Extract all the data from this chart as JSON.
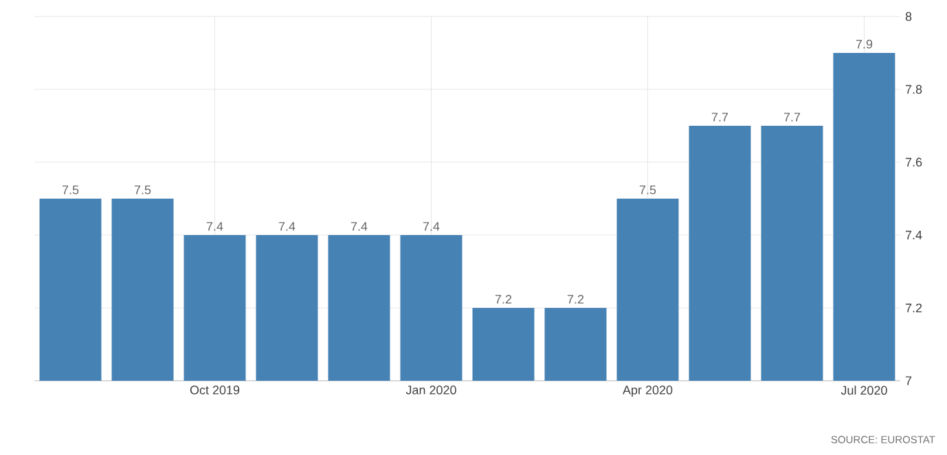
{
  "chart_data": {
    "type": "bar",
    "categories": [
      null,
      null,
      "Oct 2019",
      null,
      null,
      "Jan 2020",
      null,
      null,
      "Apr 2020",
      null,
      null,
      "Jul 2020"
    ],
    "values": [
      7.5,
      7.5,
      7.4,
      7.4,
      7.4,
      7.4,
      7.2,
      7.2,
      7.5,
      7.7,
      7.7,
      7.9
    ],
    "color": "#4682b4",
    "ylim": [
      7,
      8
    ],
    "yticks": [
      7,
      7.2,
      7.4,
      7.6,
      7.8,
      8
    ],
    "grid": true,
    "data_labels": true,
    "annotations": [
      "SOURCE: EUROSTAT"
    ]
  }
}
